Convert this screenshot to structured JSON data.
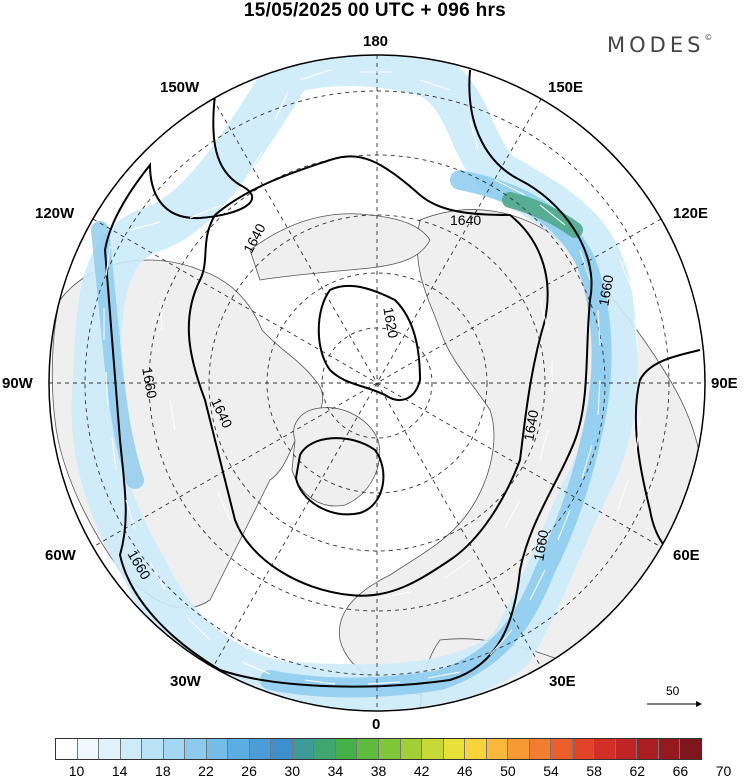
{
  "title": "15/05/2025  00 UTC  + 096 hrs",
  "brand": {
    "name": "MODES",
    "mark": "©"
  },
  "longitude_labels": {
    "top": "180",
    "upper_left": "150W",
    "upper_right": "150E",
    "left_upper": "120W",
    "right_upper": "120E",
    "left": "90W",
    "right": "90E",
    "left_lower": "60W",
    "right_lower": "60E",
    "lower_left": "30W",
    "lower_right": "30E",
    "bottom": "0"
  },
  "contours": [
    {
      "label": "1620"
    },
    {
      "label": "1640"
    },
    {
      "label": "1660"
    }
  ],
  "reference_vector": {
    "value": "50"
  },
  "colorbar": {
    "labels": [
      "10",
      "14",
      "18",
      "22",
      "26",
      "30",
      "34",
      "38",
      "42",
      "46",
      "50",
      "54",
      "58",
      "62",
      "66",
      "70"
    ],
    "colors": [
      "#ffffff",
      "#eef8fd",
      "#dff2fb",
      "#cdebf9",
      "#b9e2f6",
      "#a3d8f3",
      "#8ccbee",
      "#74bde8",
      "#5aaee1",
      "#4a9ed8",
      "#3d8fce",
      "#3f9a9a",
      "#3fa66f",
      "#44b048",
      "#5fbb3e",
      "#7fc638",
      "#a2cf35",
      "#c6d935",
      "#e8e238",
      "#f8d43a",
      "#f9b83a",
      "#f79a35",
      "#f27c30",
      "#ec5e2b",
      "#e24428",
      "#d42f26",
      "#c02424",
      "#aa1e22",
      "#941a20",
      "#7e161d"
    ]
  }
}
